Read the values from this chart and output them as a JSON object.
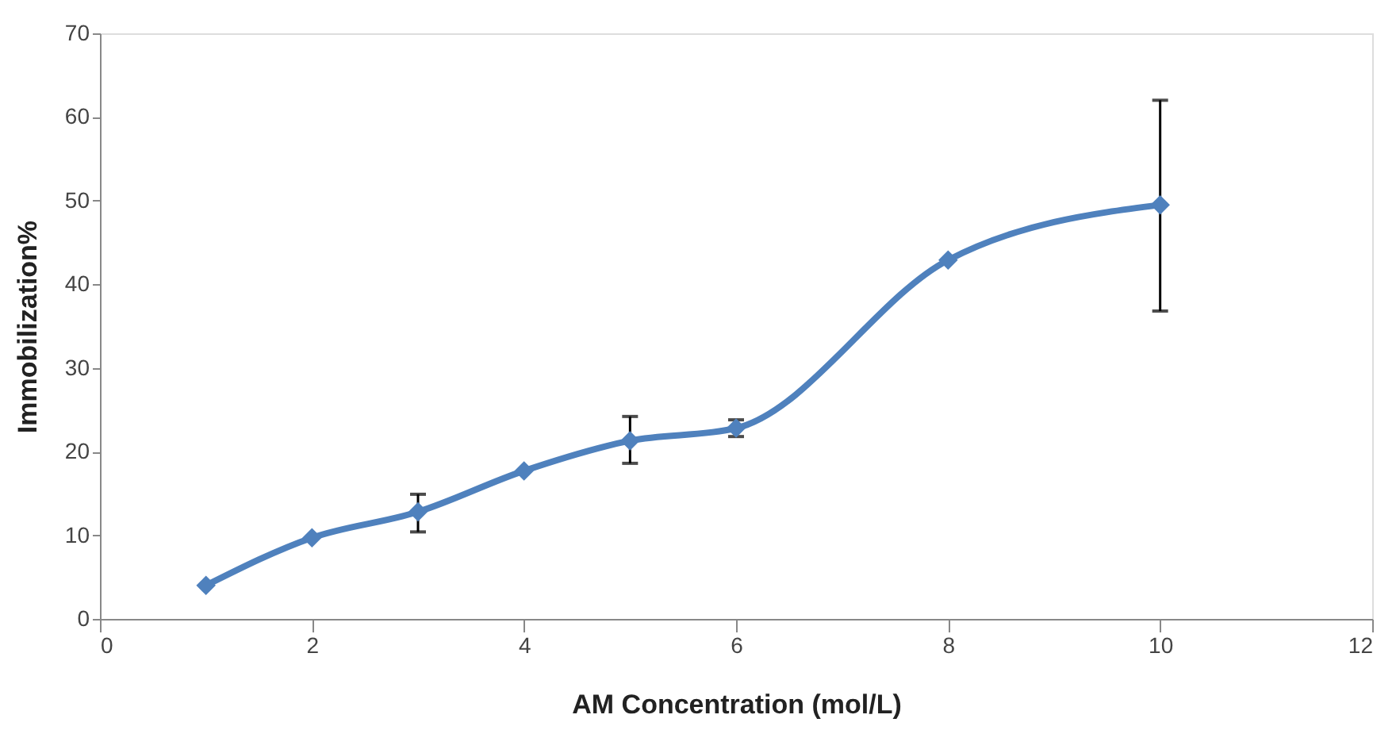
{
  "chart_data": {
    "type": "line",
    "xlabel": "AM Concentration (mol/L)",
    "ylabel": "Immobilization%",
    "x": [
      1,
      2,
      3,
      4,
      5,
      6,
      8,
      10
    ],
    "series": [
      {
        "color": "#4f81bd",
        "values": [
          4.0,
          9.7,
          12.8,
          17.7,
          21.3,
          22.8,
          42.9,
          49.5
        ],
        "errors": [
          null,
          null,
          [
            10.4,
            14.9
          ],
          null,
          [
            18.6,
            24.2
          ],
          1,
          null,
          [
            36.8,
            62.0
          ]
        ]
      }
    ],
    "xlim": [
      0,
      12
    ],
    "xticks": [
      0,
      2,
      4,
      6,
      8,
      10,
      12
    ],
    "ylim": [
      0,
      70
    ],
    "yticks": [
      0,
      10,
      20,
      30,
      40,
      50,
      60,
      70
    ],
    "marker": "diamond",
    "line_style": "solid",
    "grid": false
  }
}
